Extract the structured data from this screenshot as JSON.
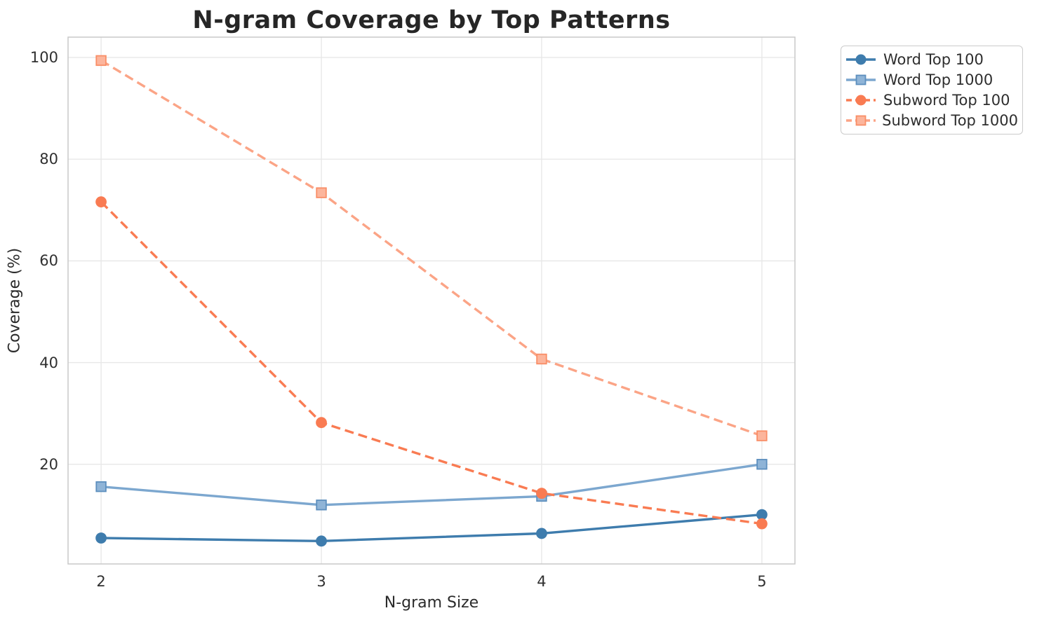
{
  "figure": {
    "title": "N-gram Coverage by Top Patterns",
    "xlabel": "N-gram Size",
    "ylabel": "Coverage (%)"
  },
  "chart_data": {
    "type": "line",
    "title": "N-gram Coverage by Top Patterns",
    "xlabel": "N-gram Size",
    "ylabel": "Coverage (%)",
    "x": [
      2,
      3,
      4,
      5
    ],
    "x_tick_labels": [
      "2",
      "3",
      "4",
      "5"
    ],
    "y_ticks": [
      20,
      40,
      60,
      80,
      100
    ],
    "xlim": [
      1.85,
      5.15
    ],
    "ylim": [
      0.4,
      104
    ],
    "grid": true,
    "legend_position": "upper-right-outside-axes",
    "grid_color": "#e8e8e8",
    "spine_color": "#c9c9c9",
    "series": [
      {
        "name": "Word Top 100",
        "marker": "circle",
        "line_style": "solid",
        "color": "#3E7CAD",
        "marker_fill": "#3E7CAD",
        "marker_edge": "#3E7CAD",
        "values": [
          5.5,
          4.9,
          6.4,
          10.1
        ]
      },
      {
        "name": "Word Top 1000",
        "marker": "square",
        "line_style": "solid",
        "color": "#7CA7CF",
        "marker_fill": "#8FB4D7",
        "marker_edge": "#5D8FBE",
        "values": [
          15.6,
          12.0,
          13.7,
          20.0
        ]
      },
      {
        "name": "Subword Top 100",
        "marker": "circle",
        "line_style": "dashed",
        "color": "#F97B52",
        "marker_fill": "#F97B52",
        "marker_edge": "#F97B52",
        "values": [
          71.6,
          28.2,
          14.3,
          8.3
        ]
      },
      {
        "name": "Subword Top 1000",
        "marker": "square",
        "line_style": "dashed",
        "color": "#FBA486",
        "marker_fill": "#FCB59C",
        "marker_edge": "#F98E67",
        "values": [
          99.4,
          73.4,
          40.7,
          25.6
        ]
      }
    ]
  }
}
